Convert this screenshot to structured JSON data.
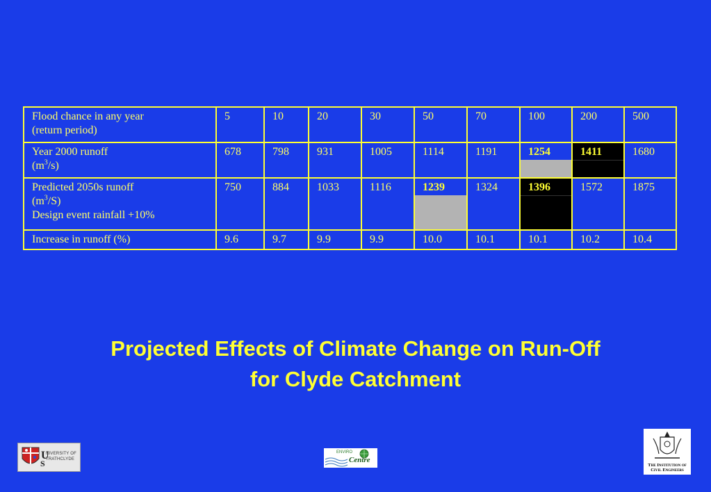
{
  "table": {
    "rows": [
      {
        "label_lines": [
          "Flood chance in any year",
          "(return period)"
        ],
        "cells": [
          "5",
          "10",
          "20",
          "30",
          "50",
          "70",
          "100",
          "200",
          "500"
        ]
      },
      {
        "label_lines": [
          "Year 2000 runoff",
          "(m",
          "3",
          "/s)"
        ],
        "cells": [
          "678",
          "798",
          "931",
          "1005",
          "1114",
          "1191",
          "1254",
          "1411",
          "1680"
        ]
      },
      {
        "label_lines": [
          "Predicted 2050s runoff",
          "(m",
          "3",
          "/S)",
          "Design event rainfall +10%"
        ],
        "cells": [
          "750",
          "884",
          "1033",
          "1116",
          "1239",
          "1324",
          "1396",
          "1572",
          "1875"
        ]
      },
      {
        "label_lines": [
          "Increase in runoff (%)"
        ],
        "cells": [
          "9.6",
          "9.7",
          "9.9",
          "9.9",
          "10.0",
          "10.1",
          "10.1",
          "10.2",
          "10.4"
        ]
      }
    ],
    "highlight_colors": {
      "gray": "#b3b3b3",
      "black": "#000000",
      "text": "#ffff33"
    }
  },
  "title": {
    "line1": "Projected Effects of Climate Change on Run-Off",
    "line2": "for Clyde Catchment"
  },
  "logos": {
    "strathclyde": {
      "text_line1": "NIVERSITY OF",
      "text_line2": "TRATHCLYDE"
    },
    "enviro_centre": {
      "text_top": "ENVIRO",
      "text_main": "Centre"
    },
    "ice": {
      "line1": "The Institution of",
      "line2": "Civil Engineers"
    }
  },
  "colors": {
    "background": "#1a3ce8",
    "text": "#ffff33",
    "border": "#ffff33"
  }
}
